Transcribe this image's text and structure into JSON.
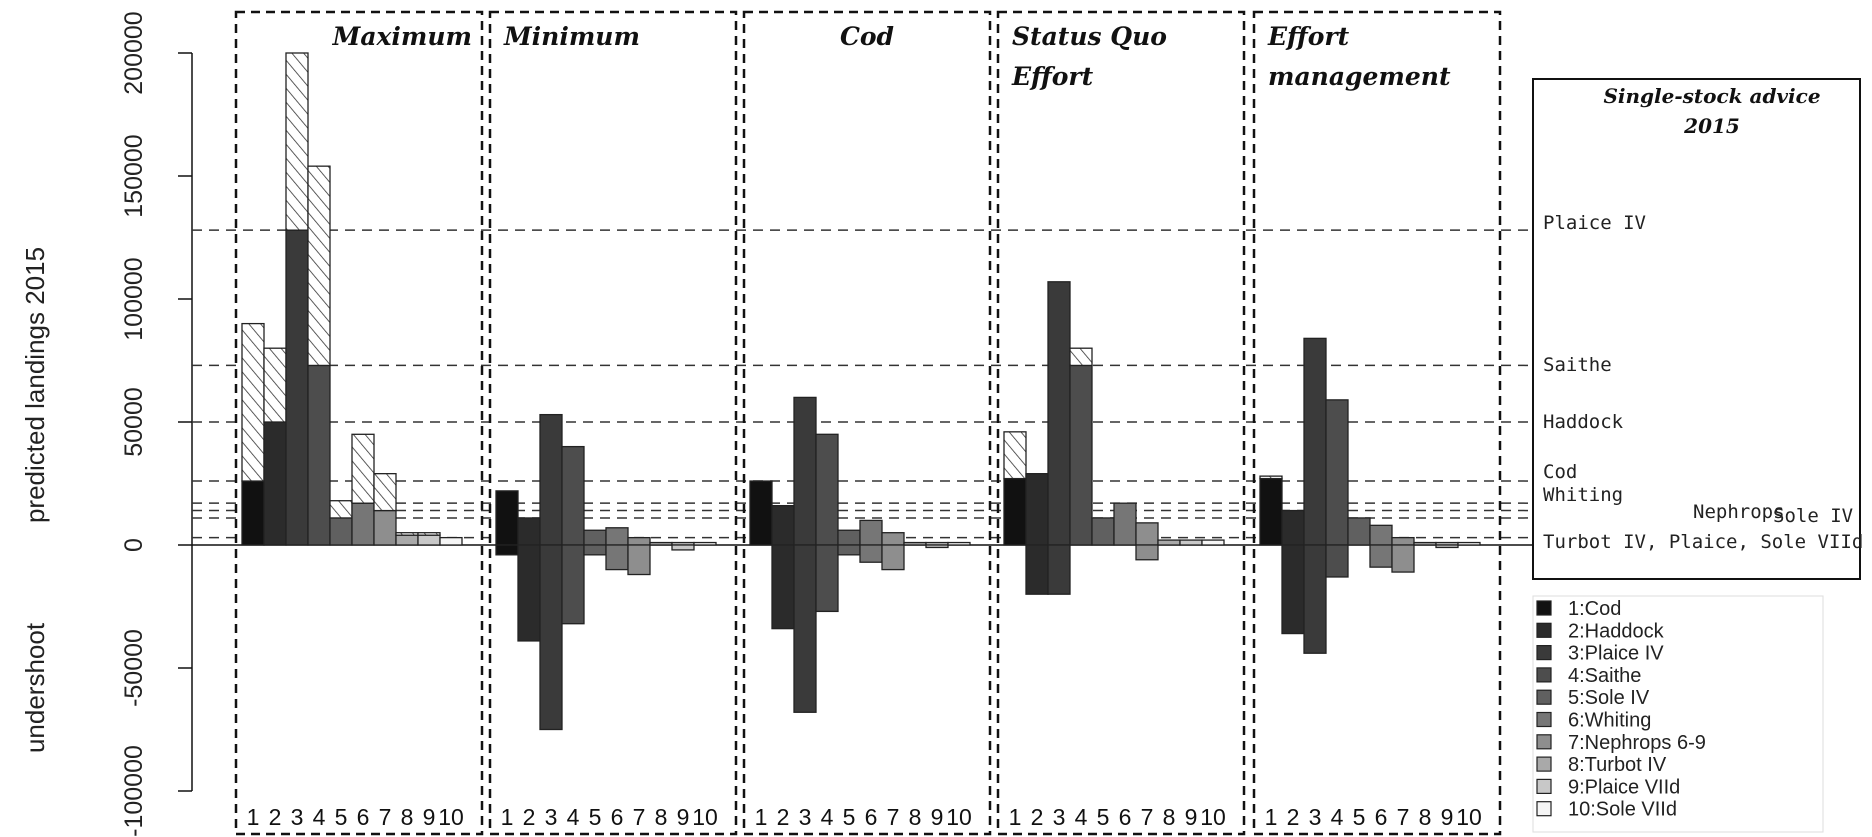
{
  "chart_data": {
    "type": "bar",
    "ylabel_top": "predicted landings 2015",
    "ylabel_bottom": "undershoot",
    "ylim": [
      -100000,
      200000
    ],
    "yticks": [
      -100000,
      -50000,
      0,
      50000,
      100000,
      150000,
      200000
    ],
    "categories": [
      "1",
      "2",
      "3",
      "4",
      "5",
      "6",
      "7",
      "8",
      "9",
      "10"
    ],
    "panels": [
      {
        "title_lines": [
          "Maximum"
        ],
        "values": [
          26000,
          50000,
          128000,
          73000,
          11000,
          17000,
          14000,
          4000,
          4000,
          3000
        ],
        "overshoot": [
          64000,
          30000,
          72000,
          81000,
          7000,
          28000,
          15000,
          1000,
          1000,
          0
        ]
      },
      {
        "title_lines": [
          "Minimum"
        ],
        "values": [
          22000,
          11000,
          53000,
          40000,
          6000,
          7000,
          3000,
          1000,
          1000,
          1000
        ],
        "undershoot": [
          -4000,
          -39000,
          -75000,
          -32000,
          -4000,
          -10000,
          -12000,
          0,
          -2000,
          0
        ]
      },
      {
        "title_lines": [
          "Cod"
        ],
        "values": [
          26000,
          16000,
          60000,
          45000,
          6000,
          10000,
          5000,
          1000,
          1000,
          1000
        ],
        "undershoot": [
          0,
          -34000,
          -68000,
          -27000,
          -4000,
          -7000,
          -10000,
          0,
          -1000,
          0
        ]
      },
      {
        "title_lines": [
          "Status Quo",
          "Effort"
        ],
        "values": [
          27000,
          29000,
          107000,
          73000,
          11000,
          17000,
          9000,
          2000,
          2000,
          2000
        ],
        "overshoot": [
          19000,
          0,
          0,
          7000,
          0,
          0,
          0,
          0,
          0,
          0
        ],
        "undershoot": [
          0,
          -20000,
          -20000,
          0,
          0,
          0,
          -6000,
          0,
          0,
          0
        ]
      },
      {
        "title_lines": [
          "Effort",
          "management"
        ],
        "values": [
          27000,
          14000,
          84000,
          59000,
          11000,
          8000,
          3000,
          1000,
          1000,
          1000
        ],
        "overshoot": [
          1000,
          0,
          0,
          0,
          0,
          0,
          0,
          0,
          0,
          0
        ],
        "undershoot": [
          0,
          -36000,
          -44000,
          -13000,
          0,
          -9000,
          -11000,
          0,
          -1000,
          0
        ]
      }
    ],
    "reference_title_lines": [
      "Single-stock advice",
      "2015"
    ],
    "reference_lines": [
      {
        "label": "Plaice IV",
        "value": 128000
      },
      {
        "label": "Saithe",
        "value": 73000
      },
      {
        "label": "Haddock",
        "value": 50000
      },
      {
        "label": "Cod",
        "value": 26000
      },
      {
        "label": "Whiting",
        "value": 17000
      },
      {
        "label": "Nephrops",
        "value": 14000
      },
      {
        "label": "Sole IV",
        "value": 11000
      },
      {
        "label": "Turbot IV, Plaice, Sole VIId",
        "value": 3000
      }
    ],
    "legend": [
      "1:Cod",
      "2:Haddock",
      "3:Plaice IV",
      "4:Saithe",
      "5:Sole IV",
      "6:Whiting",
      "7:Nephrops 6-9",
      "8:Turbot IV",
      "9:Plaice VIId",
      "10:Sole VIId"
    ],
    "colors": [
      "#111111",
      "#2b2b2b",
      "#3a3a3a",
      "#4d4d4d",
      "#606060",
      "#767676",
      "#8e8e8e",
      "#a9a9a9",
      "#c8c8c8",
      "#f5f5f5"
    ]
  }
}
